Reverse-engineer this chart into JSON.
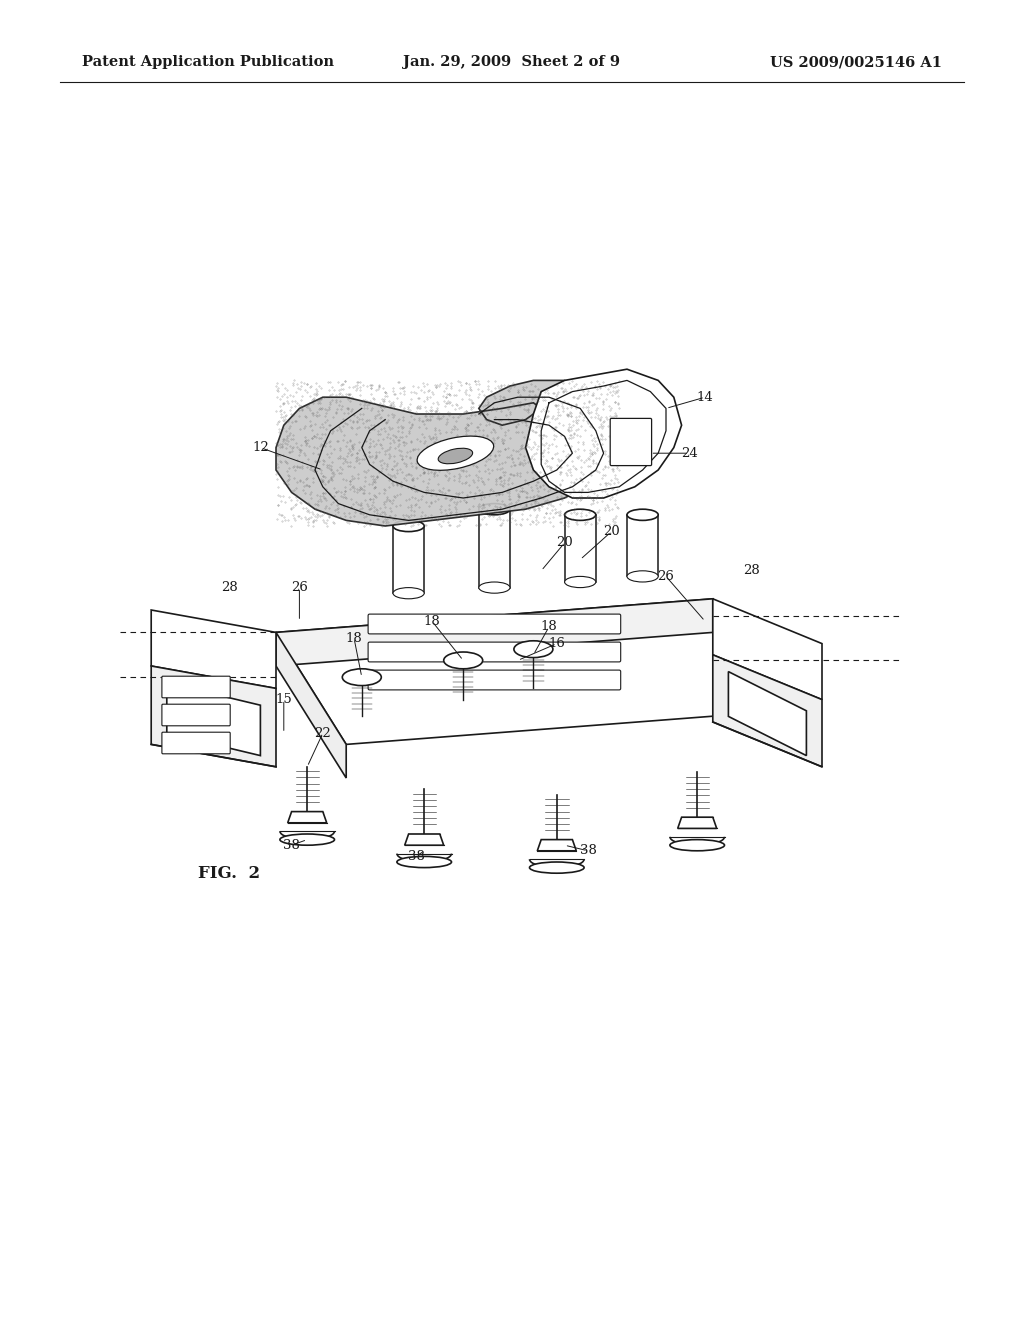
{
  "bg": "#ffffff",
  "fig_width": 10.24,
  "fig_height": 13.2,
  "dpi": 100,
  "header_left": "Patent Application Publication",
  "header_center": "Jan. 29, 2009  Sheet 2 of 9",
  "header_right": "US 2009/0025146 A1",
  "col": "#1a1a1a",
  "fig2_label": "FIG.  2",
  "lw_main": 1.2,
  "lw_thin": 0.8
}
